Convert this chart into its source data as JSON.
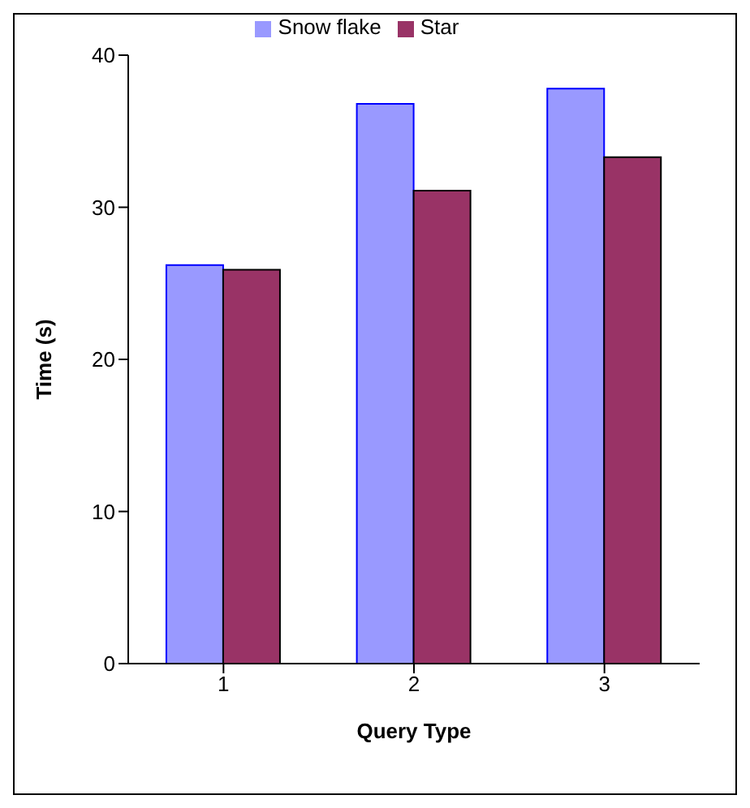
{
  "chart_data": {
    "type": "bar",
    "xlabel": "Query Type",
    "ylabel": "Time (s)",
    "categories": [
      "1",
      "2",
      "3"
    ],
    "series": [
      {
        "name": "Snow flake",
        "color": "#9999ff",
        "values": [
          26.2,
          36.8,
          37.8
        ]
      },
      {
        "name": "Star",
        "color": "#993366",
        "values": [
          25.9,
          31.1,
          33.3
        ]
      }
    ],
    "ylim": [
      0,
      40
    ],
    "yticks": [
      0,
      10,
      20,
      30,
      40
    ],
    "grid": false,
    "legend": "top"
  }
}
